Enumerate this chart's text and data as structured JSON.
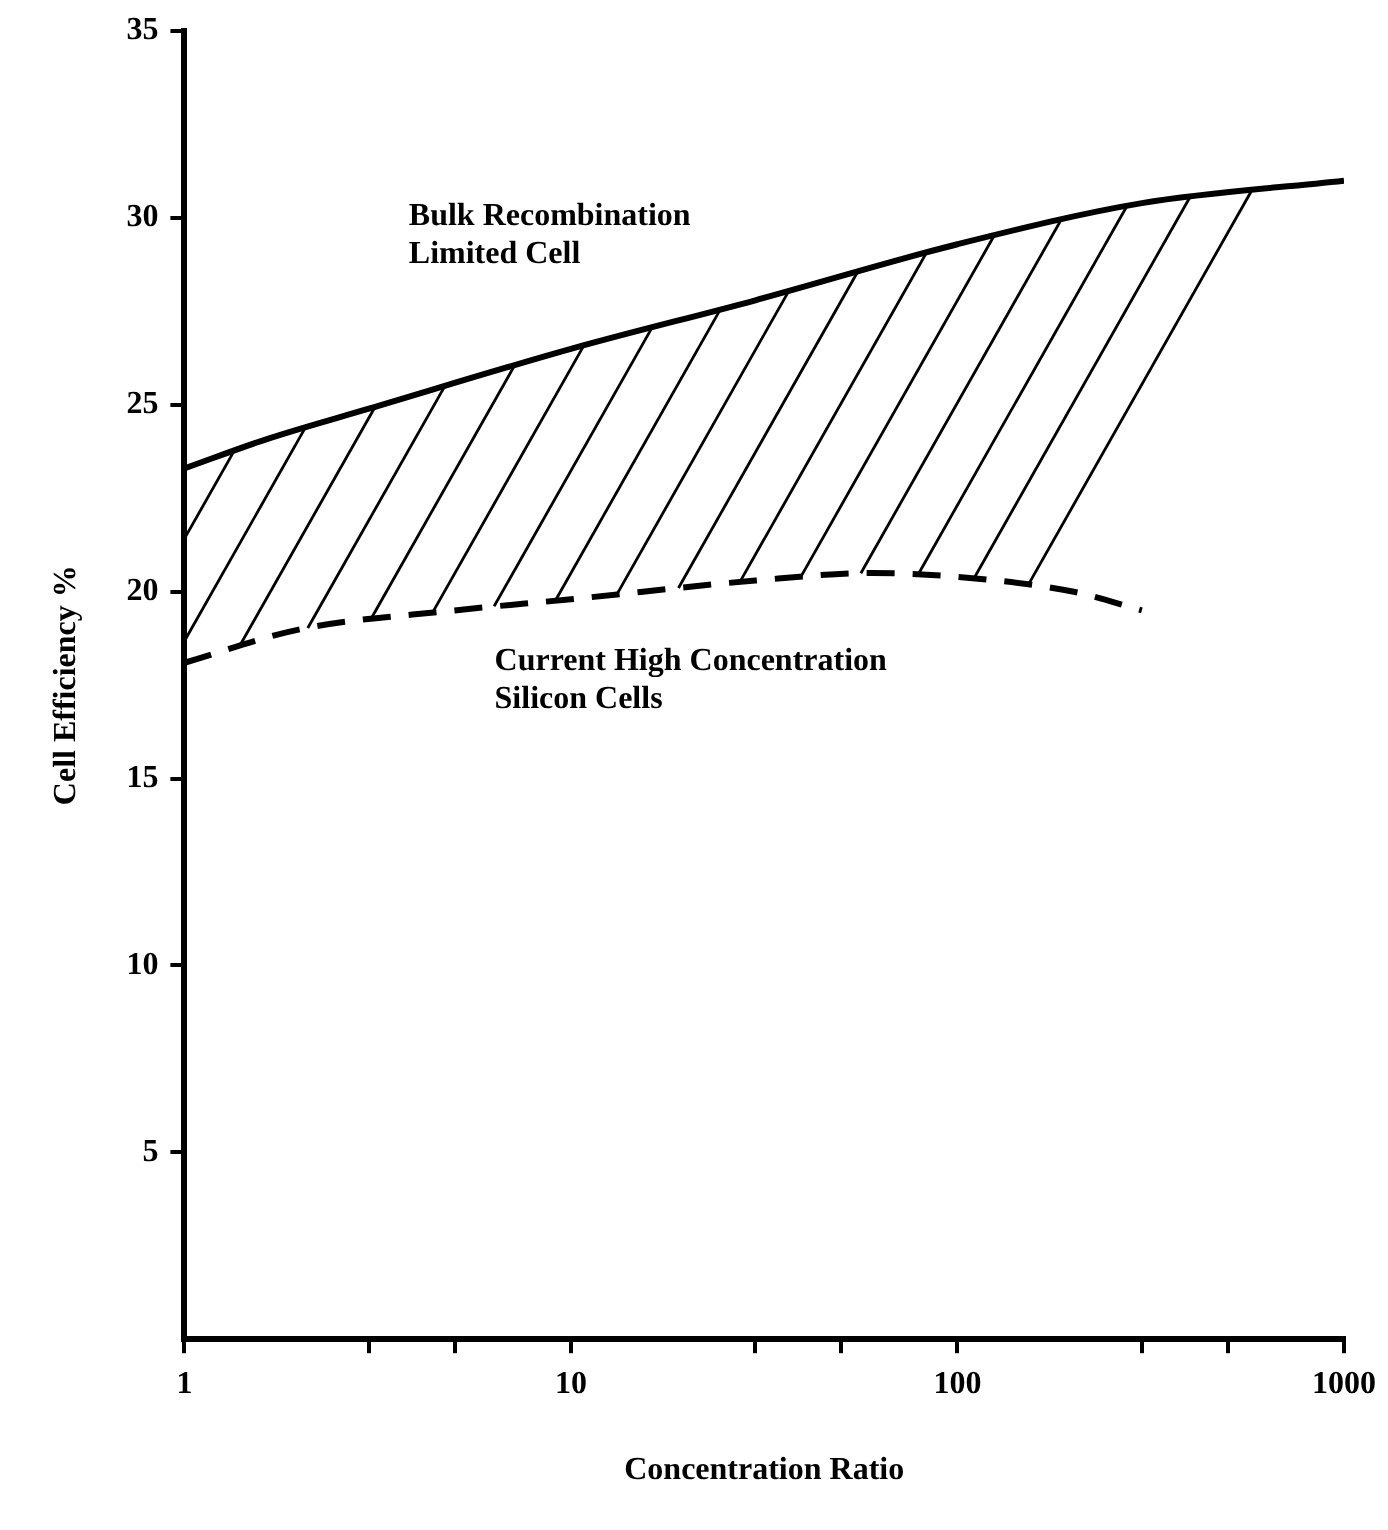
{
  "chart_data": {
    "type": "line",
    "xlabel": "Concentration Ratio",
    "ylabel": "Cell Efficiency %",
    "log": "x",
    "xlim": [
      1,
      1000
    ],
    "xticks": [
      1,
      {
        "value": 3,
        "label": null
      },
      {
        "value": 5,
        "label": null
      },
      10,
      {
        "value": 30,
        "label": null
      },
      {
        "value": 50,
        "label": null
      },
      100,
      {
        "value": 300,
        "label": null
      },
      {
        "value": 500,
        "label": null
      },
      1000
    ],
    "ylim": [
      0,
      35
    ],
    "yticks": [
      5,
      10,
      15,
      20,
      25,
      30,
      35
    ],
    "grid": false,
    "legend": false,
    "marker": "none",
    "series": [
      {
        "name": "Bulk Recombination Limited Cell",
        "color": "#000000",
        "line_style": "solid",
        "x": [
          1,
          1.65,
          3,
          10,
          30,
          100,
          300,
          1000
        ],
        "values": [
          23.3,
          24.1,
          24.9,
          26.5,
          27.8,
          29.3,
          30.4,
          31.0
        ]
      },
      {
        "name": "Current High Concentration Silicon Cells",
        "color": "#000000",
        "line_style": "dashed",
        "x": [
          1,
          2,
          5,
          10,
          30,
          60,
          100,
          200,
          300
        ],
        "values": [
          18.1,
          19.0,
          19.5,
          19.8,
          20.3,
          20.5,
          20.4,
          20.0,
          19.5
        ]
      }
    ]
  }
}
